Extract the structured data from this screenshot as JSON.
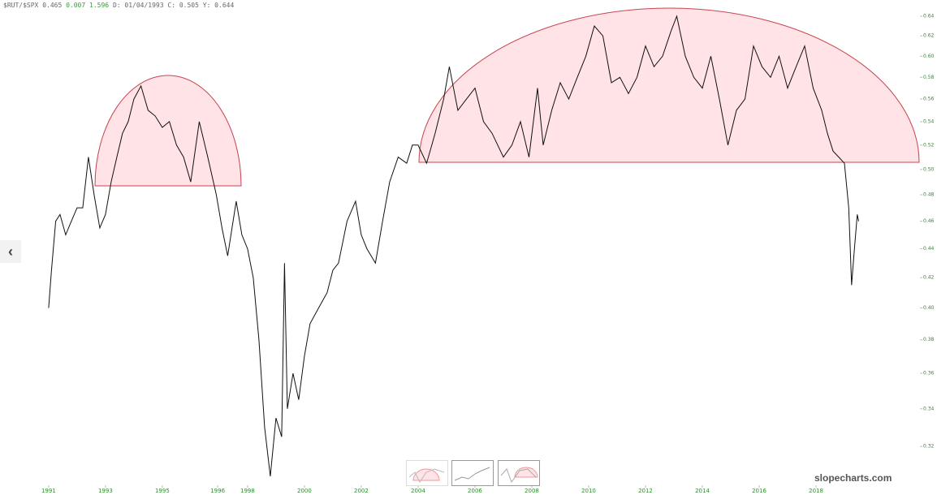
{
  "header": {
    "ticker": "$RUT/$SPX",
    "price": "0.465",
    "change": "0.007",
    "change_pct": "1.596",
    "cursor": "D: 01/04/1993 C: 0.505 Y: 0.644"
  },
  "watermark": "slopecharts.com",
  "chart_data": {
    "type": "line",
    "color": "#111111",
    "log_scale": true,
    "xlim": [
      1989.29,
      2021.57
    ],
    "xticks": [
      1991,
      1993,
      1995,
      {
        "value": 1996.95,
        "label": "1996"
      },
      1998,
      2000,
      2002,
      2004,
      2006,
      2008,
      2010,
      2012,
      2014,
      2016,
      2018
    ],
    "ylim": [
      0.301,
      0.645
    ],
    "yticks": [
      0.32,
      0.34,
      0.36,
      0.38,
      {
        "value": 0.4,
        "label": "0.40"
      },
      0.42,
      0.44,
      0.46,
      0.48,
      {
        "value": 0.5,
        "label": "0.50"
      },
      0.52,
      0.54,
      0.56,
      0.58,
      {
        "value": 0.6,
        "label": "0.60"
      },
      0.62,
      0.64
    ],
    "x": [
      1991.0,
      1991.1,
      1991.25,
      1991.4,
      1991.6,
      1991.8,
      1992.0,
      1992.2,
      1992.4,
      1992.6,
      1992.8,
      1993.0,
      1993.2,
      1993.4,
      1993.6,
      1993.8,
      1994.0,
      1994.25,
      1994.5,
      1994.75,
      1995.0,
      1995.25,
      1995.5,
      1995.75,
      1996.0,
      1996.3,
      1996.6,
      1996.9,
      1997.1,
      1997.3,
      1997.6,
      1997.8,
      1998.0,
      1998.2,
      1998.4,
      1998.6,
      1998.8,
      1999.0,
      1999.2,
      1999.3,
      1999.4,
      1999.6,
      1999.8,
      2000.0,
      2000.2,
      2000.5,
      2000.8,
      2001.0,
      2001.2,
      2001.5,
      2001.8,
      2002.0,
      2002.2,
      2002.5,
      2002.75,
      2003.0,
      2003.3,
      2003.6,
      2003.8,
      2004.0,
      2004.3,
      2004.6,
      2004.9,
      2005.1,
      2005.4,
      2005.7,
      2006.0,
      2006.3,
      2006.6,
      2007.0,
      2007.3,
      2007.6,
      2007.9,
      2008.2,
      2008.4,
      2008.7,
      2009.0,
      2009.3,
      2009.6,
      2009.9,
      2010.2,
      2010.5,
      2010.8,
      2011.1,
      2011.4,
      2011.7,
      2012.0,
      2012.3,
      2012.6,
      2012.9,
      2013.1,
      2013.4,
      2013.7,
      2014.0,
      2014.3,
      2014.6,
      2014.9,
      2015.2,
      2015.5,
      2015.8,
      2016.1,
      2016.4,
      2016.7,
      2017.0,
      2017.3,
      2017.6,
      2017.9,
      2018.2,
      2018.4,
      2018.6,
      2018.8,
      2019.0,
      2019.15,
      2019.25,
      2019.35,
      2019.45,
      2019.5
    ],
    "values": [
      0.4,
      0.425,
      0.46,
      0.465,
      0.45,
      0.46,
      0.47,
      0.47,
      0.51,
      0.48,
      0.455,
      0.465,
      0.49,
      0.51,
      0.53,
      0.54,
      0.56,
      0.572,
      0.55,
      0.545,
      0.535,
      0.54,
      0.52,
      0.51,
      0.49,
      0.54,
      0.51,
      0.48,
      0.455,
      0.435,
      0.475,
      0.45,
      0.44,
      0.42,
      0.38,
      0.33,
      0.305,
      0.335,
      0.325,
      0.43,
      0.34,
      0.36,
      0.345,
      0.37,
      0.39,
      0.4,
      0.41,
      0.425,
      0.43,
      0.46,
      0.475,
      0.45,
      0.44,
      0.43,
      0.46,
      0.49,
      0.51,
      0.505,
      0.52,
      0.52,
      0.505,
      0.53,
      0.56,
      0.59,
      0.55,
      0.56,
      0.57,
      0.54,
      0.53,
      0.51,
      0.52,
      0.54,
      0.51,
      0.57,
      0.52,
      0.55,
      0.575,
      0.56,
      0.58,
      0.6,
      0.63,
      0.62,
      0.575,
      0.58,
      0.565,
      0.58,
      0.61,
      0.59,
      0.6,
      0.625,
      0.64,
      0.6,
      0.58,
      0.57,
      0.6,
      0.56,
      0.52,
      0.55,
      0.56,
      0.61,
      0.59,
      0.58,
      0.6,
      0.57,
      0.59,
      0.61,
      0.57,
      0.55,
      0.53,
      0.515,
      0.51,
      0.505,
      0.47,
      0.415,
      0.44,
      0.465,
      0.46
    ]
  }
}
